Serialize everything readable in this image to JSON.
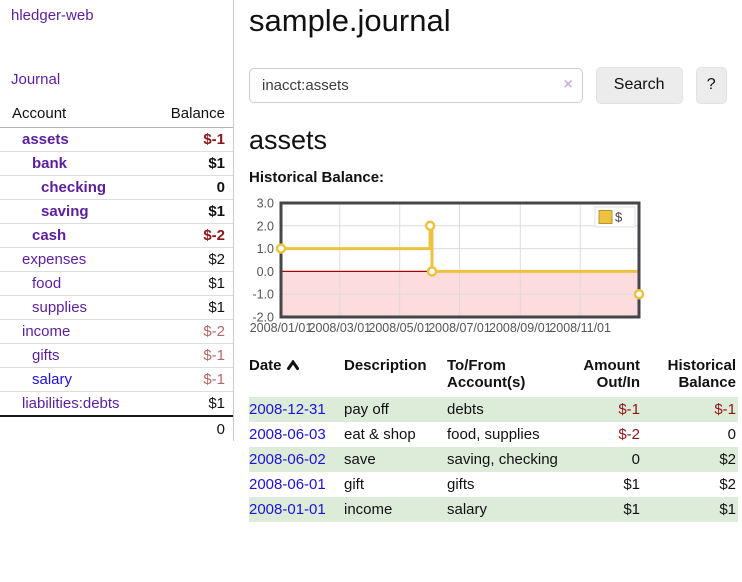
{
  "app": {
    "brand": "hledger-web"
  },
  "colors": {
    "purple_link": "#5b1f9e",
    "blue_link": "#1d12d6",
    "negative_strong": "#8f1515",
    "negative_soft": "#b26b6b",
    "row_shade": "#dcecd9",
    "chart_line": "#edc240",
    "chart_negative_region": "#fcdcdc",
    "chart_zero_line": "#aa0000"
  },
  "sidebar": {
    "nav_journal": "Journal",
    "accounts_table": {
      "headers": [
        "Account",
        "Balance"
      ],
      "rows": [
        {
          "account": "assets",
          "balance": "$-1",
          "indent": 1,
          "bold": true,
          "link_color": "purple"
        },
        {
          "account": "bank",
          "balance": "$1",
          "indent": 2,
          "bold": true,
          "link_color": "purple"
        },
        {
          "account": "checking",
          "balance": "0",
          "indent": 3,
          "bold": true,
          "link_color": "purple"
        },
        {
          "account": "saving",
          "balance": "$1",
          "indent": 3,
          "bold": true,
          "link_color": "purple"
        },
        {
          "account": "cash",
          "balance": "$-2",
          "indent": 2,
          "bold": true,
          "link_color": "purple"
        },
        {
          "account": "expenses",
          "balance": "$2",
          "indent": 1,
          "bold": false,
          "link_color": "purple"
        },
        {
          "account": "food",
          "balance": "$1",
          "indent": 2,
          "bold": false,
          "link_color": "purple"
        },
        {
          "account": "supplies",
          "balance": "$1",
          "indent": 2,
          "bold": false,
          "link_color": "purple"
        },
        {
          "account": "income",
          "balance": "$-2",
          "indent": 1,
          "bold": false,
          "link_color": "purple"
        },
        {
          "account": "gifts",
          "balance": "$-1",
          "indent": 2,
          "bold": false,
          "link_color": "purple"
        },
        {
          "account": "salary",
          "balance": "$-1",
          "indent": 2,
          "bold": false,
          "link_color": "blue"
        },
        {
          "account": "liabilities:debts",
          "balance": "$1",
          "indent": 1,
          "bold": false,
          "link_color": "purple"
        }
      ],
      "total": "0"
    }
  },
  "main": {
    "title": "sample.journal",
    "search": {
      "value": "inacct:assets",
      "clear_icon": "×",
      "search_button": "Search",
      "help_button": "?"
    },
    "account_heading": "assets",
    "chart_label": "Historical Balance:"
  },
  "chart_data": {
    "type": "line",
    "step": true,
    "series": [
      {
        "name": "$",
        "points": [
          [
            "2008-01-01",
            1
          ],
          [
            "2008-06-01",
            2
          ],
          [
            "2008-06-03",
            0
          ],
          [
            "2008-12-31",
            -1
          ]
        ]
      }
    ],
    "yticks": [
      3.0,
      2.0,
      1.0,
      0.0,
      -1.0,
      -2.0
    ],
    "xticks": [
      "2008/01/01",
      "2008/03/01",
      "2008/05/01",
      "2008/07/01",
      "2008/09/01",
      "2008/11/01"
    ],
    "ylim": [
      -2,
      3
    ],
    "xlim": [
      "2008-01-01",
      "2008-12-31"
    ],
    "grid": true,
    "legend": {
      "label": "$",
      "position": "top-right"
    }
  },
  "register_table": {
    "headers": [
      "Date",
      "Description",
      "To/From Account(s)",
      "Amount Out/In",
      "Historical Balance"
    ],
    "sort_icon": "chevron-up",
    "rows": [
      {
        "date": "2008-12-31",
        "description": "pay off",
        "accounts": "debts",
        "amount": "$-1",
        "balance": "$-1",
        "shaded": true
      },
      {
        "date": "2008-06-03",
        "description": "eat & shop",
        "accounts": "food, supplies",
        "amount": "$-2",
        "balance": "0",
        "shaded": false
      },
      {
        "date": "2008-06-02",
        "description": "save",
        "accounts": "saving, checking",
        "amount": "0",
        "balance": "$2",
        "shaded": true
      },
      {
        "date": "2008-06-01",
        "description": "gift",
        "accounts": "gifts",
        "amount": "$1",
        "balance": "$2",
        "shaded": false
      },
      {
        "date": "2008-01-01",
        "description": "income",
        "accounts": "salary",
        "amount": "$1",
        "balance": "$1",
        "shaded": true
      }
    ]
  }
}
